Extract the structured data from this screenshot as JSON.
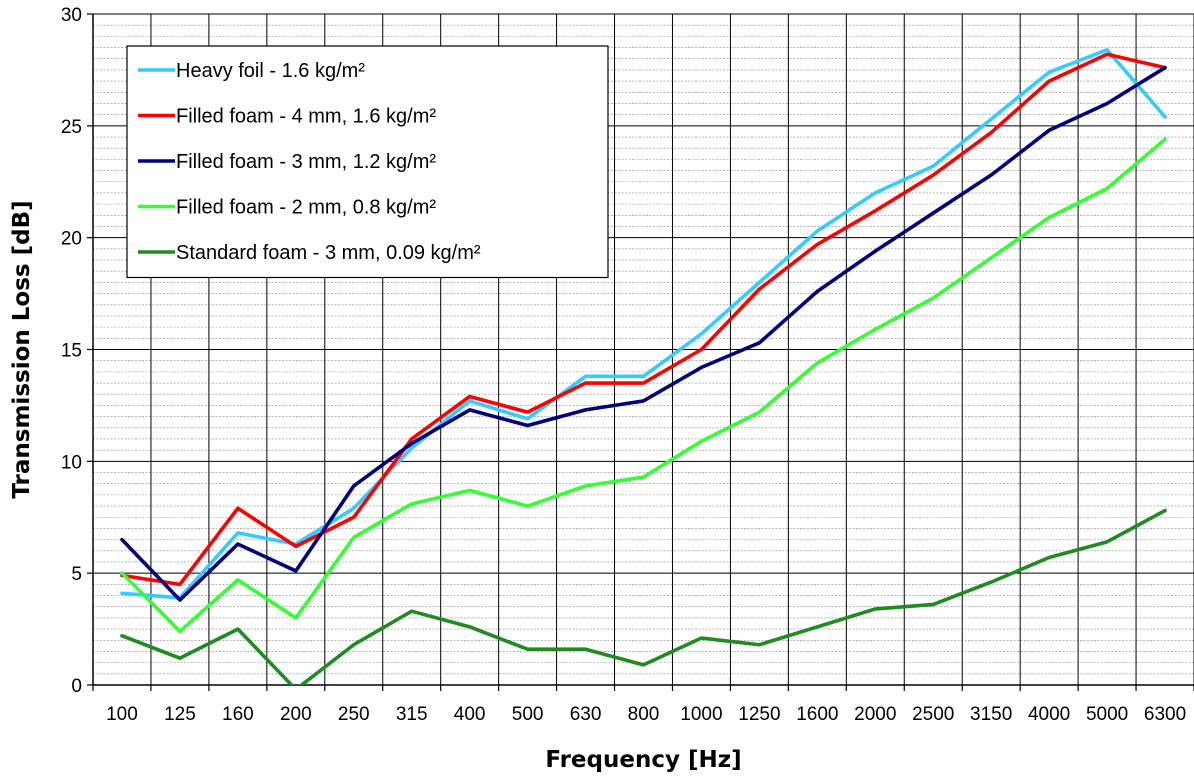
{
  "chart_data": {
    "type": "line",
    "xlabel": "Frequency [Hz]",
    "ylabel": "Transmission Loss [dB]",
    "categories": [
      "100",
      "125",
      "160",
      "200",
      "250",
      "315",
      "400",
      "500",
      "630",
      "800",
      "1000",
      "1250",
      "1600",
      "2000",
      "2500",
      "3150",
      "4000",
      "5000",
      "6300"
    ],
    "ylim": [
      0,
      30
    ],
    "yticks": [
      0,
      5,
      10,
      15,
      20,
      25,
      30
    ],
    "grid": {
      "major": true,
      "minor": true
    },
    "legend_position": "top-left",
    "series": [
      {
        "name": "Heavy foil - 1.6 kg/m²",
        "color": "#33CCFF",
        "values": [
          4.1,
          3.9,
          6.8,
          6.3,
          7.9,
          10.6,
          12.7,
          11.9,
          13.8,
          13.8,
          15.7,
          18.0,
          20.3,
          22.0,
          23.2,
          25.3,
          27.4,
          28.4,
          25.4
        ]
      },
      {
        "name": "Filled foam - 4 mm, 1.6 kg/m²",
        "color": "#FF0000",
        "values": [
          4.9,
          4.5,
          7.9,
          6.2,
          7.5,
          11.0,
          12.9,
          12.2,
          13.5,
          13.5,
          15.0,
          17.7,
          19.7,
          21.2,
          22.8,
          24.7,
          27.0,
          28.2,
          27.6
        ]
      },
      {
        "name": "Filled foam - 3 mm, 1.2 kg/m²",
        "color": "#000080",
        "values": [
          6.5,
          3.8,
          6.3,
          5.1,
          8.9,
          10.8,
          12.3,
          11.6,
          12.3,
          12.7,
          14.2,
          15.3,
          17.6,
          19.4,
          21.1,
          22.8,
          24.8,
          26.0,
          27.6
        ]
      },
      {
        "name": "Filled foam - 2 mm, 0.8 kg/m²",
        "color": "#33FF33",
        "values": [
          5.0,
          2.4,
          4.7,
          3.0,
          6.6,
          8.1,
          8.7,
          8.0,
          8.9,
          9.3,
          10.9,
          12.2,
          14.4,
          15.9,
          17.3,
          19.1,
          20.9,
          22.2,
          24.4
        ]
      },
      {
        "name": "Standard foam - 3 mm, 0.09 kg/m²",
        "color": "#1E8C1E",
        "values": [
          2.2,
          1.2,
          2.5,
          -0.2,
          1.8,
          3.3,
          2.6,
          1.6,
          1.6,
          0.9,
          2.1,
          1.8,
          2.6,
          3.4,
          3.6,
          4.6,
          5.7,
          6.4,
          7.8
        ]
      }
    ]
  }
}
